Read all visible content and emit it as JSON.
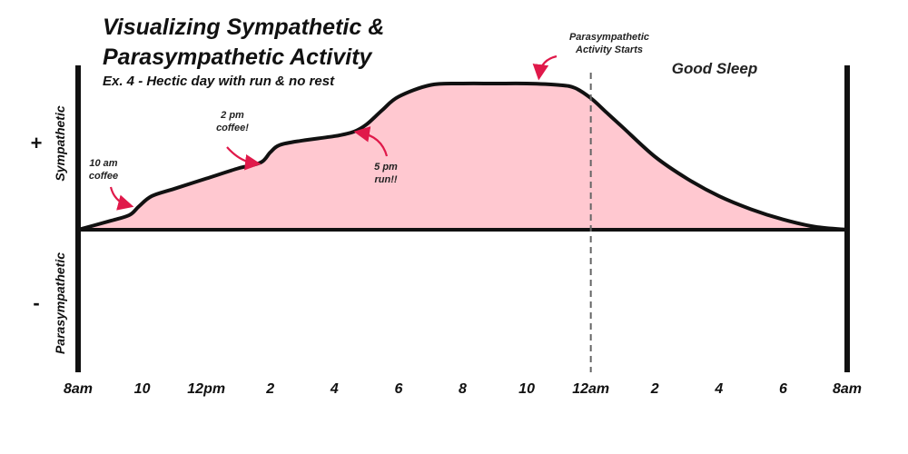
{
  "title_line1": "Visualizing Sympathetic &",
  "title_line2": "Parasympathetic Activity",
  "subtitle": "Ex. 4 - Hectic day with run & no rest",
  "y_positive": {
    "sign": "+",
    "label": "Sympathetic"
  },
  "y_negative": {
    "sign": "-",
    "label": "Parasympathetic"
  },
  "colors": {
    "fill": "#ffc8d0",
    "line": "#111111",
    "arrow": "#e0194a",
    "dashed": "#666666"
  },
  "chart_data": {
    "type": "area",
    "title": "Visualizing Sympathetic & Parasympathetic Activity",
    "subtitle": "Ex. 4 - Hectic day with run & no rest",
    "xlabel": "",
    "ylabel": "",
    "x_unit": "hours from 8am",
    "xlim": [
      0,
      24
    ],
    "x_ticks": [
      {
        "x": 0,
        "label": "8am"
      },
      {
        "x": 2,
        "label": "10"
      },
      {
        "x": 4,
        "label": "12pm"
      },
      {
        "x": 6,
        "label": "2"
      },
      {
        "x": 8,
        "label": "4"
      },
      {
        "x": 10,
        "label": "6"
      },
      {
        "x": 12,
        "label": "8"
      },
      {
        "x": 14,
        "label": "10"
      },
      {
        "x": 16,
        "label": "12am"
      },
      {
        "x": 18,
        "label": "2"
      },
      {
        "x": 20,
        "label": "4"
      },
      {
        "x": 22,
        "label": "6"
      },
      {
        "x": 24,
        "label": "8am"
      }
    ],
    "ylim": [
      -1,
      1
    ],
    "grid": false,
    "series": [
      {
        "x": [
          0,
          1,
          1.6,
          1.9,
          2.3,
          3,
          4,
          5,
          5.7,
          6,
          6.3,
          7,
          8,
          8.6,
          9,
          9.5,
          10,
          11,
          12,
          13,
          14,
          15,
          15.5,
          16,
          16.5,
          17,
          18,
          19,
          20,
          21,
          22,
          23,
          24
        ],
        "y": [
          0,
          0.06,
          0.1,
          0.16,
          0.23,
          0.28,
          0.35,
          0.42,
          0.46,
          0.53,
          0.58,
          0.61,
          0.64,
          0.67,
          0.72,
          0.82,
          0.91,
          0.99,
          1.0,
          1.0,
          1.0,
          0.99,
          0.97,
          0.9,
          0.8,
          0.7,
          0.5,
          0.35,
          0.23,
          0.14,
          0.07,
          0.02,
          0
        ]
      }
    ],
    "vlines": [
      {
        "x": 16,
        "style": "dashed"
      }
    ],
    "annotations": [
      {
        "text": [
          "10 am",
          "coffee"
        ],
        "x": 1.8
      },
      {
        "text": [
          "2 pm",
          "coffee!"
        ],
        "x": 5.8
      },
      {
        "text": [
          "5 pm",
          "run!!"
        ],
        "x": 8.8
      },
      {
        "text": [
          "Parasympathetic",
          "Activity Starts"
        ],
        "x": 14.2
      }
    ],
    "region_label": "Good Sleep"
  }
}
